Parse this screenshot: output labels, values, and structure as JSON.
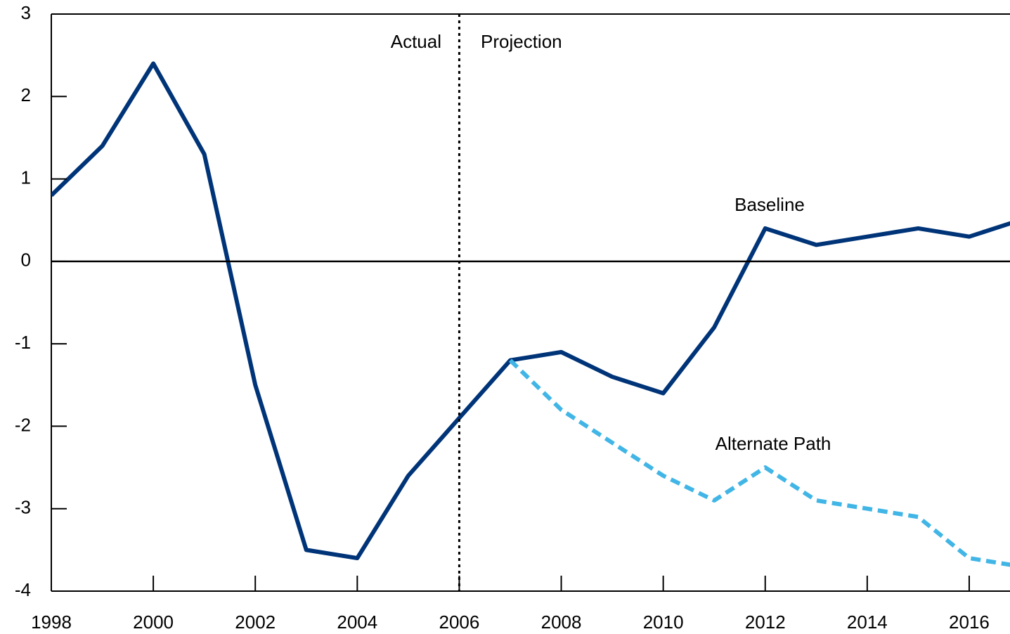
{
  "chart_data": {
    "type": "line",
    "x": [
      1998,
      1999,
      2000,
      2001,
      2002,
      2003,
      2004,
      2005,
      2006,
      2007,
      2008,
      2009,
      2010,
      2011,
      2012,
      2013,
      2014,
      2015,
      2016,
      2017
    ],
    "series": [
      {
        "name": "Baseline",
        "color": "#003478",
        "dash": false,
        "values": [
          0.8,
          1.4,
          2.4,
          1.3,
          -1.5,
          -3.5,
          -3.6,
          -2.6,
          -1.9,
          -1.2,
          -1.1,
          -1.4,
          -1.6,
          -0.8,
          0.4,
          0.2,
          0.3,
          0.4,
          0.3,
          0.5
        ]
      },
      {
        "name": "Alternate Path",
        "color": "#41b6e6",
        "dash": true,
        "values": [
          null,
          null,
          null,
          null,
          null,
          null,
          null,
          null,
          null,
          -1.2,
          -1.8,
          -2.2,
          -2.6,
          -2.9,
          -2.5,
          -2.9,
          -3.0,
          -3.1,
          -3.6,
          -3.7
        ]
      }
    ],
    "annotations": {
      "actual": "Actual",
      "projection": "Projection"
    },
    "divider": 2006,
    "xlim": [
      1998,
      2016.8
    ],
    "xticks": [
      1998,
      2000,
      2002,
      2004,
      2006,
      2008,
      2010,
      2012,
      2014,
      2016
    ],
    "ylim": [
      -4,
      3
    ],
    "yticks": [
      -4,
      -3,
      -2,
      -1,
      0,
      1,
      2,
      3
    ]
  }
}
